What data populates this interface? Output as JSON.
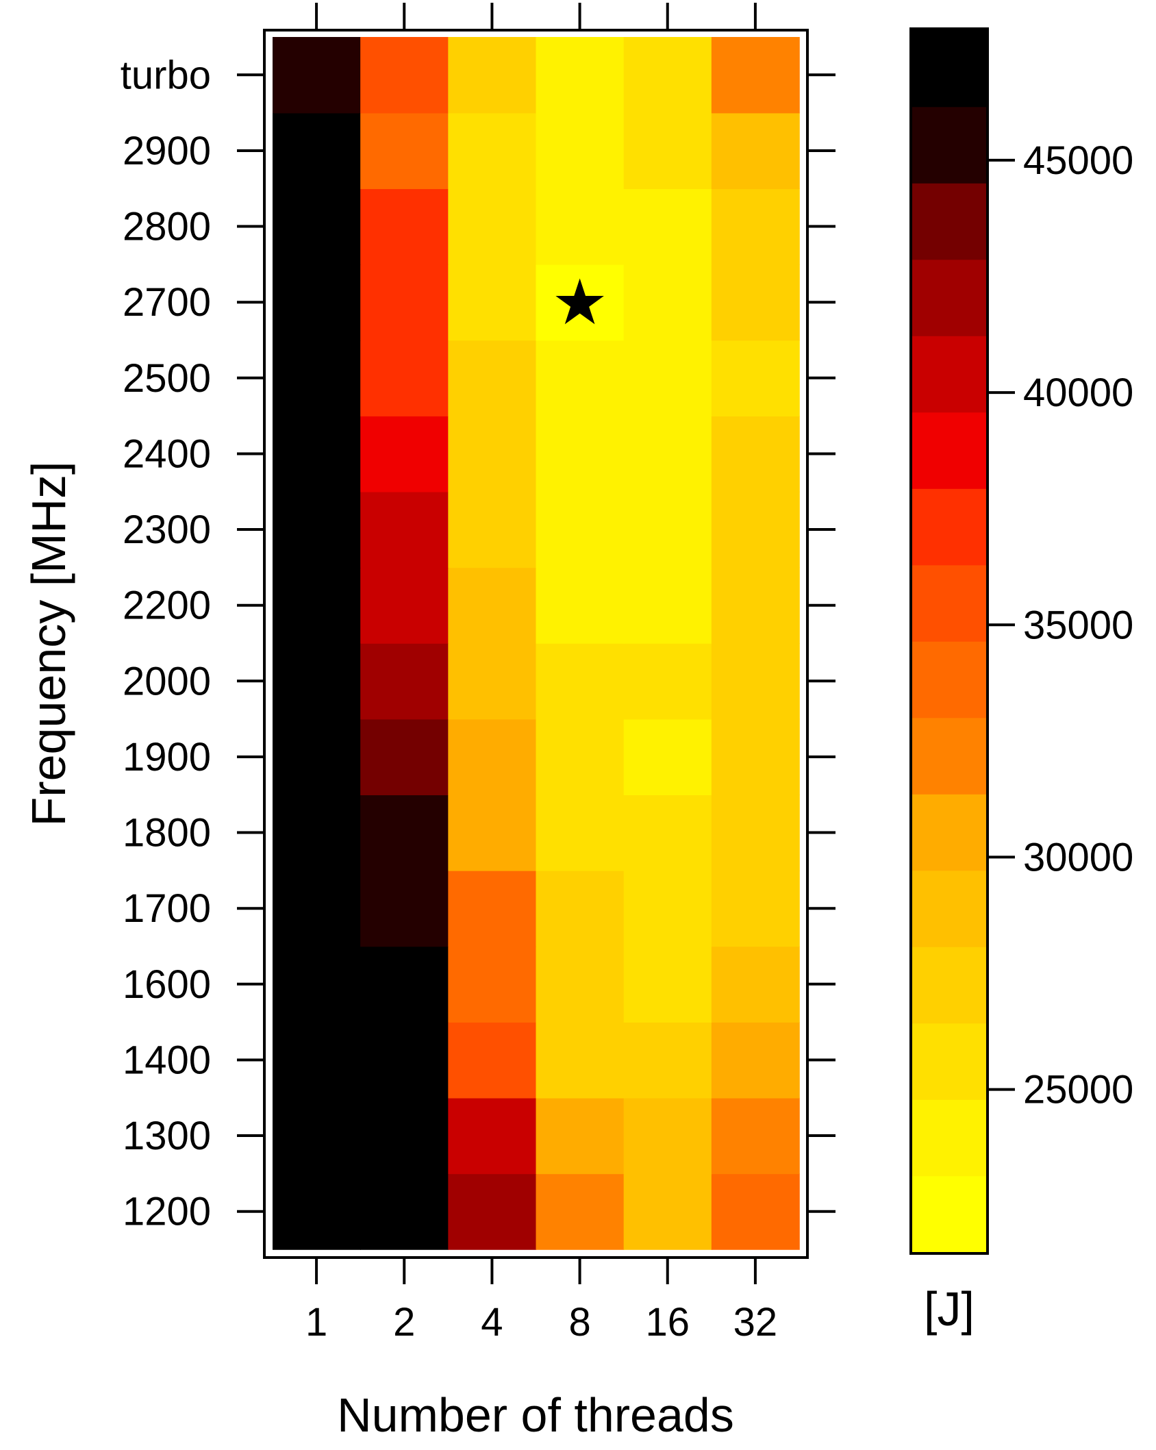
{
  "chart_data": {
    "type": "heatmap",
    "title": "",
    "xlabel": "Number of threads",
    "ylabel": "Frequency [MHz]",
    "x_categories": [
      "1",
      "2",
      "4",
      "8",
      "16",
      "32"
    ],
    "y_categories": [
      "1200",
      "1300",
      "1400",
      "1600",
      "1700",
      "1800",
      "1900",
      "2000",
      "2200",
      "2300",
      "2400",
      "2500",
      "2700",
      "2800",
      "2900",
      "turbo"
    ],
    "cell_levels": [
      [
        15,
        15,
        12,
        6,
        4,
        7
      ],
      [
        15,
        15,
        11,
        5,
        4,
        6
      ],
      [
        15,
        15,
        8,
        3,
        3,
        5
      ],
      [
        15,
        15,
        7,
        3,
        2,
        4
      ],
      [
        15,
        14,
        7,
        3,
        2,
        3
      ],
      [
        15,
        14,
        5,
        2,
        2,
        3
      ],
      [
        15,
        13,
        5,
        2,
        1,
        3
      ],
      [
        15,
        12,
        4,
        2,
        2,
        3
      ],
      [
        15,
        11,
        4,
        1,
        1,
        3
      ],
      [
        15,
        11,
        3,
        1,
        1,
        3
      ],
      [
        15,
        10,
        3,
        1,
        1,
        3
      ],
      [
        15,
        9,
        3,
        1,
        1,
        2
      ],
      [
        15,
        9,
        2,
        0,
        1,
        3
      ],
      [
        15,
        9,
        2,
        1,
        1,
        3
      ],
      [
        15,
        7,
        2,
        1,
        2,
        4
      ],
      [
        14,
        8,
        3,
        1,
        2,
        6
      ]
    ],
    "colorbar": {
      "unit_label": "[J]",
      "ticks": [
        "25000",
        "30000",
        "35000",
        "40000",
        "45000"
      ],
      "tick_values": [
        25000,
        30000,
        35000,
        40000,
        45000
      ],
      "range": [
        21500,
        47800
      ],
      "levels": 16,
      "colors": [
        "#ffff00",
        "#fff200",
        "#ffe000",
        "#ffd000",
        "#ffc000",
        "#ffac00",
        "#ff8200",
        "#ff6a00",
        "#ff5000",
        "#ff3000",
        "#f00000",
        "#c90000",
        "#a00000",
        "#740000",
        "#240000",
        "#000000"
      ]
    },
    "optimum_marker": {
      "x": "8",
      "y": "2700",
      "symbol": "★"
    },
    "grid": false,
    "legend": "right colorbar"
  }
}
